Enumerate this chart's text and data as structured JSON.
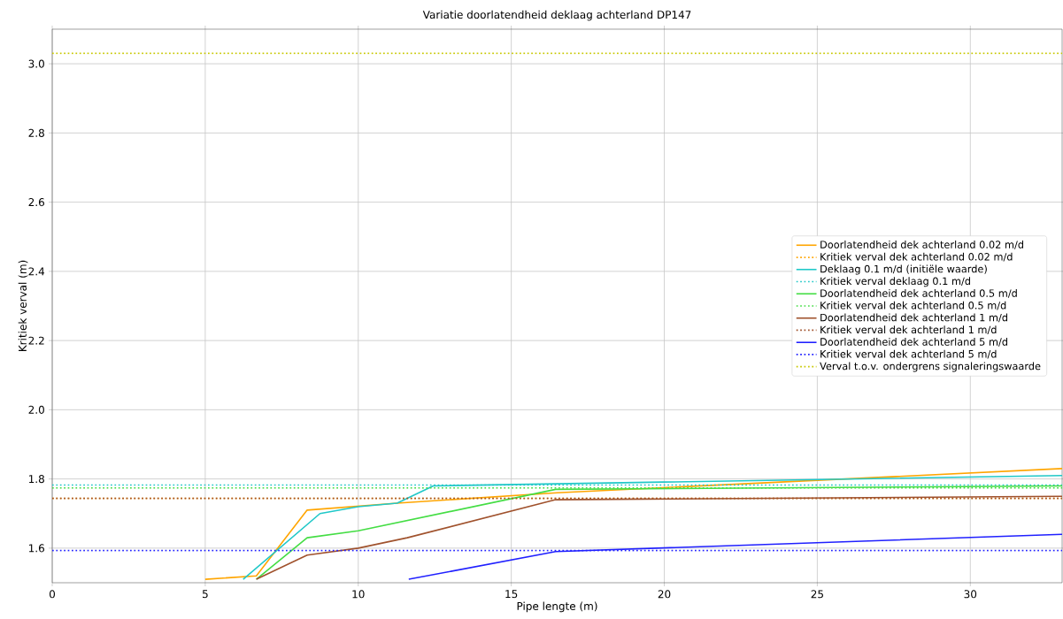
{
  "chart_data": {
    "type": "line",
    "title": "Variatie doorlatendheid deklaag achterland DP147",
    "xlabel": "Pipe lengte (m)",
    "ylabel": "Kritiek verval (m)",
    "xlim": [
      0,
      33
    ],
    "ylim": [
      1.5,
      3.1
    ],
    "xticks": [
      0,
      5,
      10,
      15,
      20,
      25,
      30
    ],
    "yticks": [
      1.6,
      1.8,
      {
        "value": 2.0,
        "label": "2.0"
      },
      2.2,
      2.4,
      2.6,
      2.8,
      {
        "value": 3.0,
        "label": "3.0"
      }
    ],
    "grid": true,
    "legend": "right",
    "marker": "none",
    "series": [
      {
        "name": "Doorlatendheid dek achterland 0.02 m/d",
        "color": "#ffa500",
        "line_style": "solid",
        "x": [
          5,
          6.67,
          8.33,
          11.27,
          16.5,
          33
        ],
        "values": [
          1.51,
          1.52,
          1.71,
          1.73,
          1.76,
          1.83
        ]
      },
      {
        "name": "Kritiek verval dek achterland 0.02 m/d",
        "color": "#ffa500",
        "line_style": "dotted",
        "x": [
          0,
          33
        ],
        "values": [
          1.744,
          1.744
        ]
      },
      {
        "name": "Deklaag 0.1 m/d (initiële waarde)",
        "color": "#20c8c8",
        "line_style": "solid",
        "x": [
          6.24,
          8.75,
          10,
          11.27,
          12.45,
          33
        ],
        "values": [
          1.51,
          1.7,
          1.72,
          1.73,
          1.78,
          1.81
        ]
      },
      {
        "name": "Kritiek verval deklaag 0.1 m/d",
        "color": "#20c8c8",
        "line_style": "dotted",
        "x": [
          0,
          33
        ],
        "values": [
          1.783,
          1.783
        ]
      },
      {
        "name": "Doorlatendheid dek achterland 0.5 m/d",
        "color": "#44dd44",
        "line_style": "solid",
        "x": [
          6.67,
          8.33,
          10,
          16.45,
          33
        ],
        "values": [
          1.51,
          1.63,
          1.65,
          1.77,
          1.78
        ]
      },
      {
        "name": "Kritiek verval dek achterland 0.5 m/d",
        "color": "#44dd44",
        "line_style": "dotted",
        "x": [
          0,
          33
        ],
        "values": [
          1.774,
          1.774
        ]
      },
      {
        "name": "Doorlatendheid dek achterland 1 m/d",
        "color": "#a0522d",
        "line_style": "solid",
        "x": [
          6.67,
          8.33,
          10,
          11.6,
          16.45,
          33
        ],
        "values": [
          1.51,
          1.58,
          1.6,
          1.63,
          1.74,
          1.75
        ]
      },
      {
        "name": "Kritiek verval dek achterland 1 m/d",
        "color": "#a0522d",
        "line_style": "dotted",
        "x": [
          0,
          33
        ],
        "values": [
          1.744,
          1.744
        ]
      },
      {
        "name": "Doorlatendheid dek achterland 5 m/d",
        "color": "#2020ff",
        "line_style": "solid",
        "x": [
          11.65,
          16.45,
          33
        ],
        "values": [
          1.51,
          1.59,
          1.64
        ]
      },
      {
        "name": "Kritiek verval dek achterland 5 m/d",
        "color": "#2020ff",
        "line_style": "dotted",
        "x": [
          0,
          33
        ],
        "values": [
          1.593,
          1.593
        ]
      },
      {
        "name": "Verval t.o.v. ondergrens signaleringswaarde",
        "color": "#c8c800",
        "line_style": "dotted",
        "x": [
          0,
          33
        ],
        "values": [
          3.03,
          3.03
        ]
      }
    ]
  }
}
